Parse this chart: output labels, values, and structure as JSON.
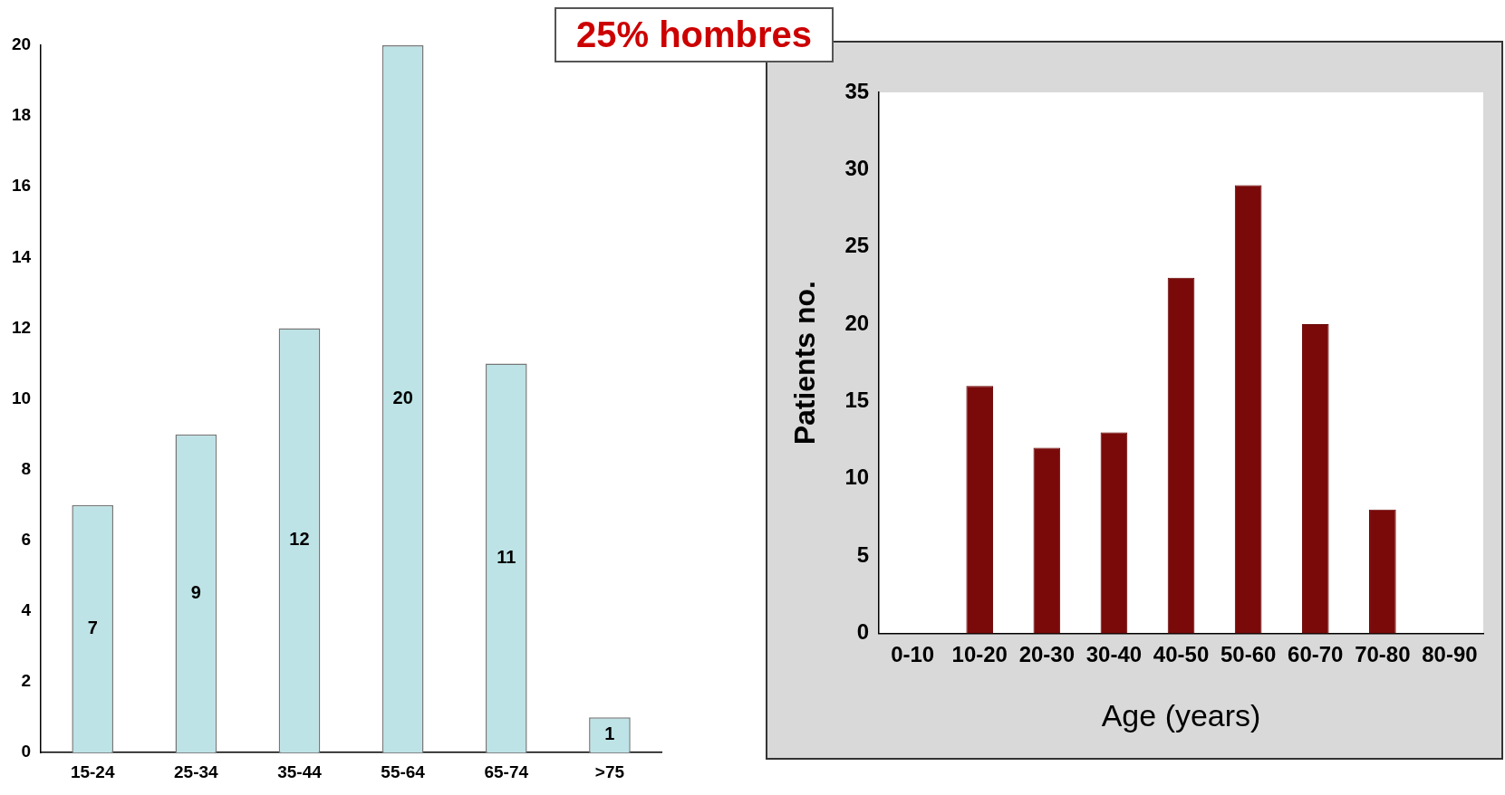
{
  "chart_data": [
    {
      "type": "bar",
      "title": "25% hombres",
      "categories": [
        "15-24",
        "25-34",
        "35-44",
        "55-64",
        "65-74",
        ">75"
      ],
      "values": [
        7,
        9,
        12,
        20,
        11,
        1
      ],
      "color": "#bde3e6",
      "ylim": [
        0,
        20
      ],
      "yticks": [
        0,
        2,
        4,
        6,
        8,
        10,
        12,
        14,
        16,
        18,
        20
      ],
      "data_labels": true
    },
    {
      "type": "bar",
      "categories": [
        "0-10",
        "10-20",
        "20-30",
        "30-40",
        "40-50",
        "50-60",
        "60-70",
        "70-80",
        "80-90"
      ],
      "values": [
        null,
        16,
        12,
        13,
        23,
        29,
        20,
        8,
        null
      ],
      "color": "#7a0a0a",
      "ylim": [
        0,
        35
      ],
      "yticks": [
        0,
        5,
        10,
        15,
        20,
        25,
        30,
        35
      ],
      "xlabel": "Age (years)",
      "ylabel": "Patients no."
    }
  ]
}
